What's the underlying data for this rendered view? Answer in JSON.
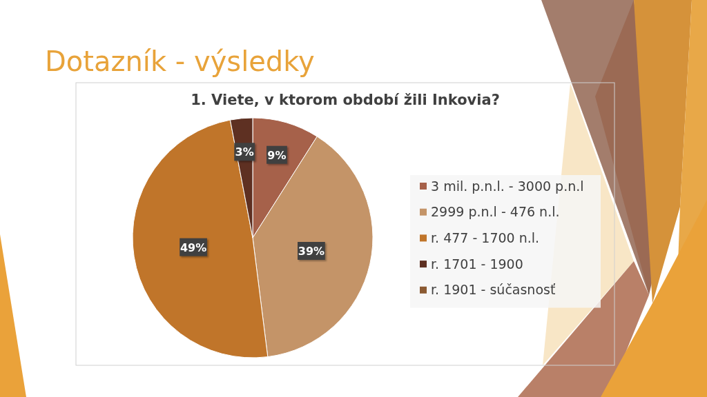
{
  "chart_data": {
    "type": "pie",
    "title": "Dotazník - výsledky",
    "subtitle": "1. Viete, v ktorom období žili Inkovia?",
    "categories": [
      "3 mil. p.n.l. - 3000 p.n.l",
      "2999 p.n.l - 476 n.l.",
      "r. 477 - 1700 n.l.",
      "r. 1701 - 1900",
      "r. 1901 - súčasnosť"
    ],
    "values": [
      9,
      39,
      49,
      3,
      0
    ],
    "colors": [
      "#a6614a",
      "#c49468",
      "#c0752a",
      "#5e3022",
      "#8b5a32"
    ],
    "value_labels": [
      "9%",
      "39%",
      "49%",
      "3%",
      null
    ],
    "legend": "right"
  }
}
